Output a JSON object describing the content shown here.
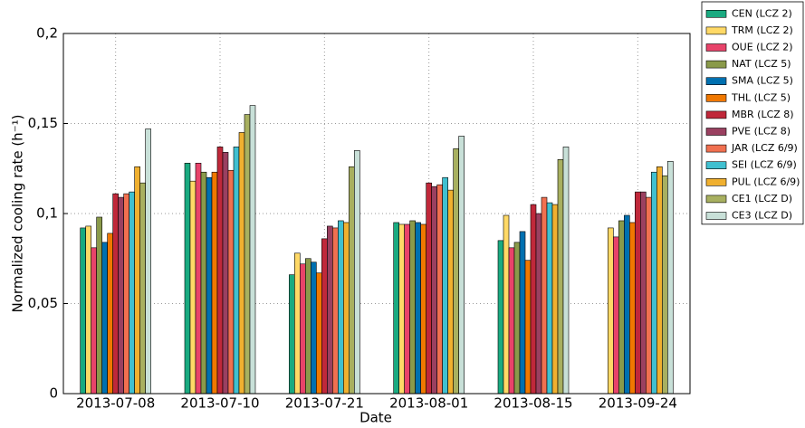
{
  "chart_data": {
    "type": "bar",
    "xlabel": "Date",
    "ylabel": "Normalized cooling rate (h⁻¹)",
    "categories": [
      "2013-07-08",
      "2013-07-10",
      "2013-07-21",
      "2013-08-01",
      "2013-08-15",
      "2013-09-24"
    ],
    "series": [
      {
        "name": "CEN (LCZ 2)",
        "color": "#1aaa80",
        "values": [
          0.092,
          0.128,
          0.066,
          0.095,
          0.085,
          null
        ]
      },
      {
        "name": "TRM (LCZ 2)",
        "color": "#ffd966",
        "values": [
          0.093,
          0.118,
          0.078,
          0.094,
          0.099,
          0.092
        ]
      },
      {
        "name": "OUE (LCZ 2)",
        "color": "#e8436a",
        "values": [
          0.081,
          0.128,
          0.072,
          0.094,
          0.081,
          0.087
        ]
      },
      {
        "name": "NAT (LCZ 5)",
        "color": "#8a9a4a",
        "values": [
          0.098,
          0.123,
          0.075,
          0.096,
          0.084,
          0.096
        ]
      },
      {
        "name": "SMA (LCZ 5)",
        "color": "#0070b0",
        "values": [
          0.084,
          0.12,
          0.073,
          0.095,
          0.09,
          0.099
        ]
      },
      {
        "name": "THL (LCZ 5)",
        "color": "#f07800",
        "values": [
          0.089,
          0.123,
          0.067,
          0.094,
          0.074,
          0.095
        ]
      },
      {
        "name": "MBR (LCZ 8)",
        "color": "#c0283a",
        "values": [
          0.111,
          0.137,
          0.086,
          0.117,
          0.105,
          0.112
        ]
      },
      {
        "name": "PVE (LCZ 8)",
        "color": "#9a4060",
        "values": [
          0.109,
          0.134,
          0.093,
          0.115,
          0.1,
          0.112
        ]
      },
      {
        "name": "JAR (LCZ 6/9)",
        "color": "#f07050",
        "values": [
          0.111,
          0.124,
          0.092,
          0.116,
          0.109,
          0.109
        ]
      },
      {
        "name": "SEI (LCZ 6/9)",
        "color": "#40c0d0",
        "values": [
          0.112,
          0.137,
          0.096,
          0.12,
          0.106,
          0.123
        ]
      },
      {
        "name": "PUL (LCZ 6/9)",
        "color": "#f0b030",
        "values": [
          0.126,
          0.145,
          0.095,
          0.113,
          0.105,
          0.126
        ]
      },
      {
        "name": "CE1 (LCZ D)",
        "color": "#a8b060",
        "values": [
          0.117,
          0.155,
          0.126,
          0.136,
          0.13,
          0.121
        ]
      },
      {
        "name": "CE3 (LCZ D)",
        "color": "#c8e0d8",
        "values": [
          0.147,
          0.16,
          0.135,
          0.143,
          0.137,
          0.129
        ]
      }
    ],
    "ylim": [
      0,
      0.2
    ],
    "yticks": [
      0,
      {
        "value": 0.05,
        "label": "0,05"
      },
      {
        "value": 0.1,
        "label": "0,1"
      },
      {
        "value": 0.15,
        "label": "0,15"
      },
      {
        "value": 0.2,
        "label": "0,2"
      }
    ],
    "grid": true,
    "legend": "upper right"
  }
}
